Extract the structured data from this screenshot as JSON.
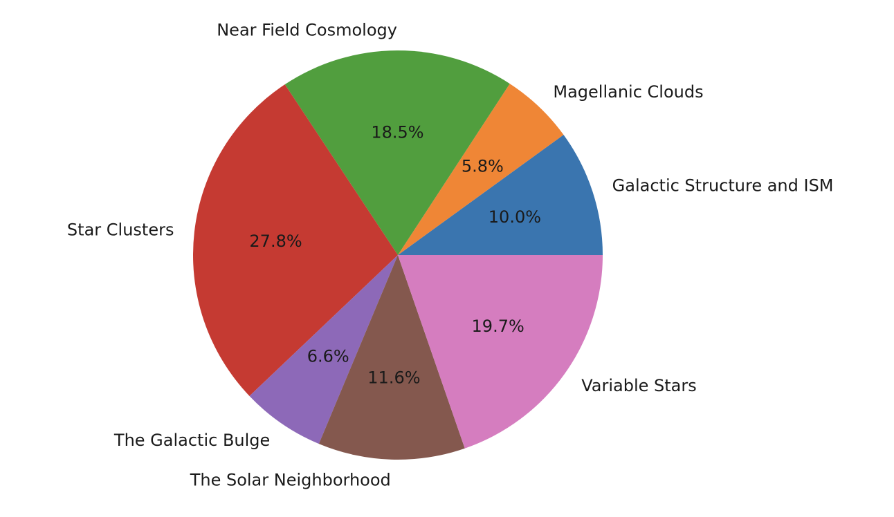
{
  "chart_data": {
    "type": "pie",
    "title": "",
    "categories": [
      "Galactic Structure and ISM",
      "Magellanic Clouds",
      "Near Field Cosmology",
      "Star Clusters",
      "The Galactic Bulge",
      "The Solar Neighborhood",
      "Variable Stars"
    ],
    "values": [
      10.0,
      5.8,
      18.5,
      27.8,
      6.6,
      11.6,
      19.7
    ],
    "value_labels": [
      "10.0%",
      "5.8%",
      "18.5%",
      "27.8%",
      "6.6%",
      "11.6%",
      "19.7%"
    ],
    "colors": [
      "#3a75af",
      "#ef8636",
      "#519e3e",
      "#c53a32",
      "#8d69b8",
      "#84584e",
      "#d57dbf"
    ],
    "start_angle_deg": 0,
    "direction": "counterclockwise",
    "legend": "none"
  }
}
